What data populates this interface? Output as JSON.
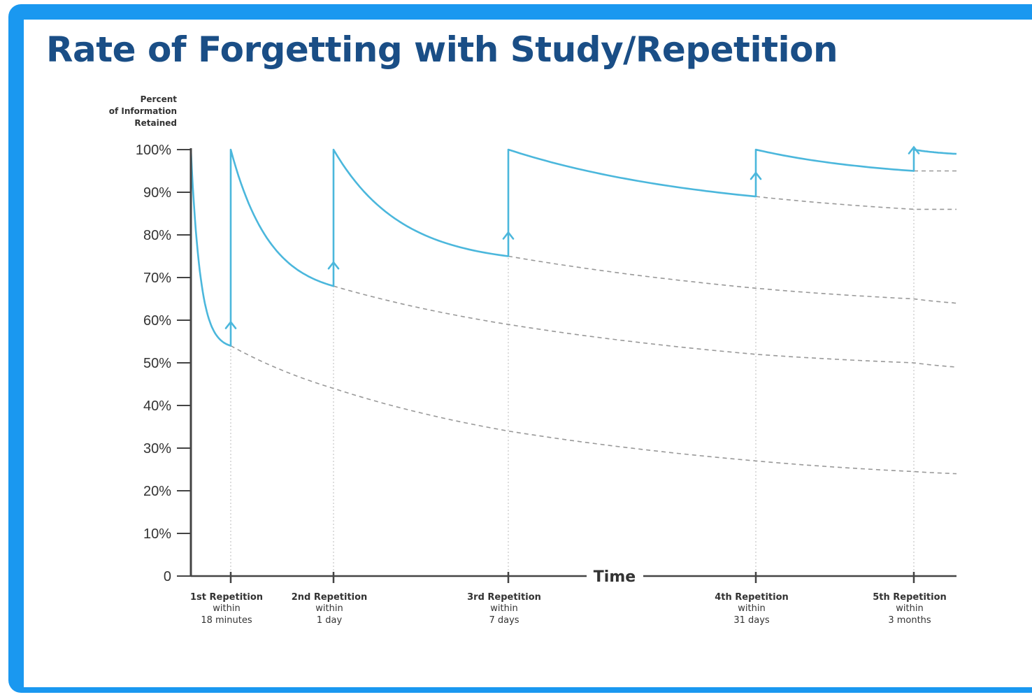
{
  "colors": {
    "frame": "#1a98f0",
    "title": "#1a4e86",
    "curve": "#4bb7dc",
    "dashed": "#999999",
    "axis": "#444444"
  },
  "chart_data": {
    "type": "line",
    "title": "Rate of Forgetting with Study/Repetition",
    "ylabel": [
      "Percent",
      "of Information",
      "Retained"
    ],
    "xlabel": "Time",
    "ylim": [
      0,
      100
    ],
    "yticks": [
      "0",
      "10%",
      "20%",
      "30%",
      "40%",
      "50%",
      "60%",
      "70%",
      "80%",
      "90%",
      "100%"
    ],
    "grid": false,
    "repetitions": [
      {
        "label": "1st Repetition",
        "within": "within",
        "interval": "18 minutes",
        "retention_before": 54
      },
      {
        "label": "2nd Repetition",
        "within": "within",
        "interval": "1 day",
        "retention_before": 68
      },
      {
        "label": "3rd Repetition",
        "within": "within",
        "interval": "7 days",
        "retention_before": 75
      },
      {
        "label": "4th Repetition",
        "within": "within",
        "interval": "31 days",
        "retention_before": 89
      },
      {
        "label": "5th Repetition",
        "within": "within",
        "interval": "3 months",
        "retention_before": 95
      }
    ],
    "series": [
      {
        "style": "solid",
        "points": [
          [
            0,
            100
          ],
          [
            1,
            54
          ],
          [
            1,
            100
          ],
          [
            2,
            68
          ],
          [
            2,
            100
          ],
          [
            3,
            75
          ],
          [
            3,
            100
          ],
          [
            4,
            89
          ],
          [
            4,
            100
          ],
          [
            5,
            95
          ],
          [
            5,
            100
          ],
          [
            5.3,
            99
          ]
        ]
      },
      {
        "style": "dashed",
        "points": [
          [
            1,
            54
          ],
          [
            2,
            44
          ],
          [
            3,
            34
          ],
          [
            4,
            27
          ],
          [
            5,
            24.5
          ],
          [
            5.3,
            24
          ]
        ]
      },
      {
        "style": "dashed",
        "points": [
          [
            2,
            68
          ],
          [
            3,
            59
          ],
          [
            4,
            52
          ],
          [
            5,
            50
          ],
          [
            5.3,
            49
          ]
        ]
      },
      {
        "style": "dashed",
        "points": [
          [
            3,
            75
          ],
          [
            4,
            67.5
          ],
          [
            5,
            65
          ],
          [
            5.3,
            64
          ]
        ]
      },
      {
        "style": "dashed",
        "points": [
          [
            4,
            89
          ],
          [
            5,
            86
          ],
          [
            5.3,
            86
          ]
        ]
      },
      {
        "style": "dashed",
        "points": [
          [
            5,
            95
          ],
          [
            5.3,
            95
          ]
        ]
      }
    ]
  }
}
